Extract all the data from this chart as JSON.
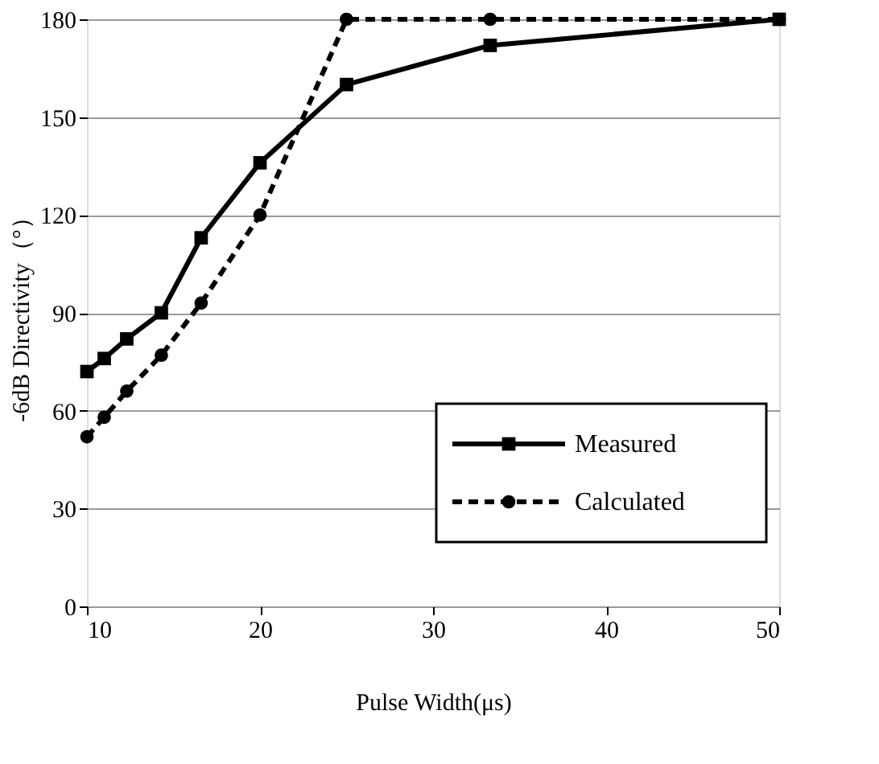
{
  "chart_data": {
    "type": "line",
    "xlabel": "Pulse Width(μs)",
    "ylabel": "-6dB Directivity（°）",
    "xlim": [
      10,
      50
    ],
    "xticks": [
      10,
      20,
      30,
      40,
      50
    ],
    "ylim": [
      0,
      180
    ],
    "yticks": [
      0,
      30,
      60,
      90,
      120,
      150,
      180
    ],
    "grid": "y",
    "legend": "bottom right",
    "series": [
      {
        "name": "Measured",
        "color": "#000000",
        "marker": "square",
        "line_style": "solid",
        "x": [
          10,
          11,
          12.3,
          14.3,
          16.6,
          20,
          25,
          33.3,
          50
        ],
        "values": [
          72,
          76,
          82,
          90,
          113,
          136,
          160,
          172,
          180
        ]
      },
      {
        "name": "Calculated",
        "color": "#000000",
        "marker": "circle",
        "line_style": "dashed",
        "x": [
          10,
          11,
          12.3,
          14.3,
          16.6,
          20,
          25,
          33.3,
          50
        ],
        "values": [
          52,
          58,
          66,
          77,
          93,
          120,
          180,
          180,
          180
        ]
      }
    ]
  }
}
